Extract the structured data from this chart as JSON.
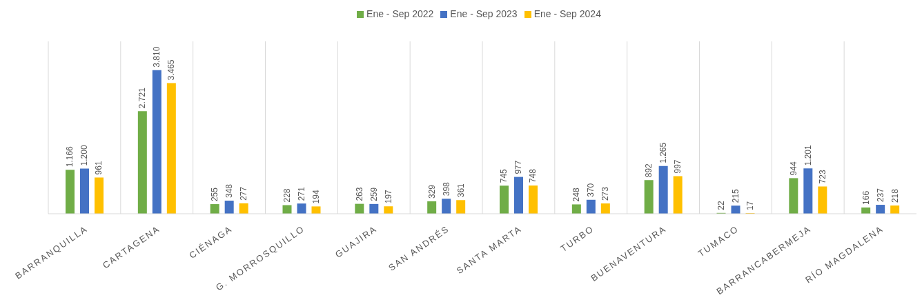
{
  "chart_data": {
    "type": "bar",
    "categories": [
      "BARRANQUILLA",
      "CARTAGENA",
      "CIÉNAGA",
      "G. MORROSQUILLO",
      "GUAJIRA",
      "SAN ANDRÉS",
      "SANTA MARTA",
      "TURBO",
      "BUENAVENTURA",
      "TUMACO",
      "BARRANCABERMEJA",
      "RÍO MAGDALENA"
    ],
    "series": [
      {
        "name": "Ene - Sep  2022",
        "color": "#70ad47",
        "values": [
          1166,
          2721,
          255,
          228,
          263,
          329,
          745,
          248,
          892,
          22,
          944,
          166
        ],
        "value_labels": [
          "1.166",
          "2.721",
          "255",
          "228",
          "263",
          "329",
          "745",
          "248",
          "892",
          "22",
          "944",
          "166"
        ]
      },
      {
        "name": "Ene - Sep  2023",
        "color": "#4472c4",
        "values": [
          1200,
          3810,
          348,
          271,
          259,
          398,
          977,
          370,
          1265,
          215,
          1201,
          237
        ],
        "value_labels": [
          "1.200",
          "3.810",
          "348",
          "271",
          "259",
          "398",
          "977",
          "370",
          "1.265",
          "215",
          "1.201",
          "237"
        ]
      },
      {
        "name": "Ene - Sep  2024",
        "color": "#ffc000",
        "values": [
          961,
          3465,
          277,
          194,
          197,
          361,
          748,
          273,
          997,
          17,
          723,
          218
        ],
        "value_labels": [
          "961",
          "3.465",
          "277",
          "194",
          "197",
          "361",
          "748",
          "273",
          "997",
          "17",
          "723",
          "218"
        ]
      }
    ],
    "grid": "x",
    "legend": "top",
    "tick_labels": "x"
  }
}
